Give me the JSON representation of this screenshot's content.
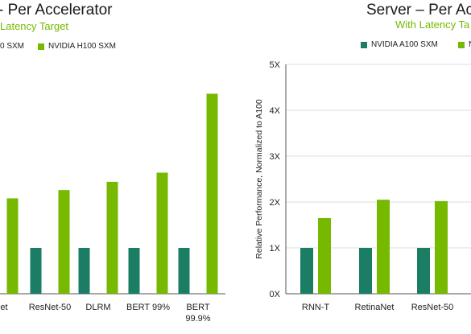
{
  "colors": {
    "a100": "#1b7d63",
    "h100": "#76b900",
    "grid": "#dcdcdc",
    "axis": "#555555"
  },
  "left_chart": {
    "title": "- Per Accelerator",
    "subtitle": "Latency Target",
    "legend": [
      "0 SXM",
      "NVIDIA H100 SXM"
    ]
  },
  "right_chart": {
    "title": "Server – Per Acce",
    "subtitle": "With Latency Ta",
    "legend": [
      "NVIDIA A100 SXM",
      "NV"
    ]
  },
  "chart_data": [
    {
      "type": "bar",
      "categories": [
        "aNet",
        "ResNet-50",
        "DLRM",
        "BERT 99%",
        "BERT 99.9%"
      ],
      "series": [
        {
          "name": "0 SXM",
          "values": [
            1,
            1,
            1,
            1,
            1
          ]
        },
        {
          "name": "NVIDIA H100 SXM",
          "values": [
            2.08,
            2.26,
            2.44,
            2.64,
            4.36
          ]
        }
      ],
      "ylim": [
        0,
        5
      ]
    },
    {
      "type": "bar",
      "categories": [
        "RNN-T",
        "RetinaNet",
        "ResNet-50"
      ],
      "series": [
        {
          "name": "NVIDIA A100 SXM",
          "values": [
            1,
            1,
            1
          ]
        },
        {
          "name": "NV",
          "values": [
            1.65,
            2.05,
            2.02
          ]
        }
      ],
      "ylabel": "Relative Performance, Normalized to A100",
      "yticks": [
        "0X",
        "1X",
        "2X",
        "3X",
        "4X",
        "5X"
      ],
      "ylim": [
        0,
        5
      ]
    }
  ]
}
